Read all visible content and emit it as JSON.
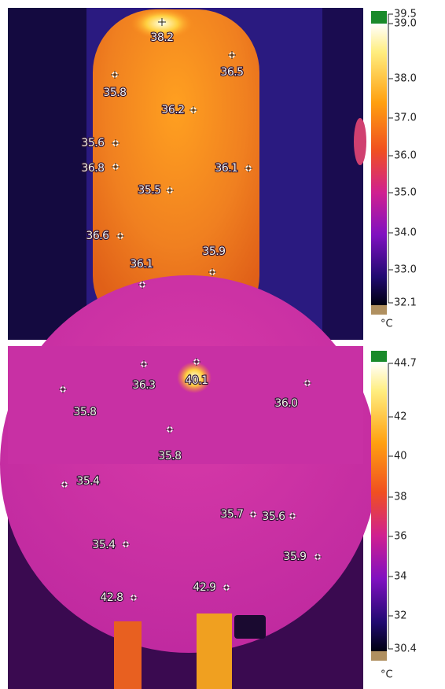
{
  "panels": [
    {
      "spots": [
        "38.2",
        "36.5",
        "35.8",
        "36.2",
        "35.6",
        "36.8",
        "36.1",
        "35.5",
        "36.6",
        "35.9",
        "36.1"
      ],
      "scale_ticks": [
        "39.5",
        "39.0",
        "38.0",
        "37.0",
        "36.0",
        "35.0",
        "34.0",
        "33.0",
        "32.1"
      ],
      "unit": "°C"
    },
    {
      "spots": [
        "36.3",
        "40.1",
        "35.8",
        "36.0",
        "35.8",
        "35.4",
        "35.7",
        "35.6",
        "35.4",
        "35.9",
        "42.8",
        "42.9"
      ],
      "scale_ticks": [
        "44.7",
        "42",
        "40",
        "38",
        "36",
        "34",
        "32",
        "30.4"
      ],
      "unit": "°C"
    }
  ]
}
